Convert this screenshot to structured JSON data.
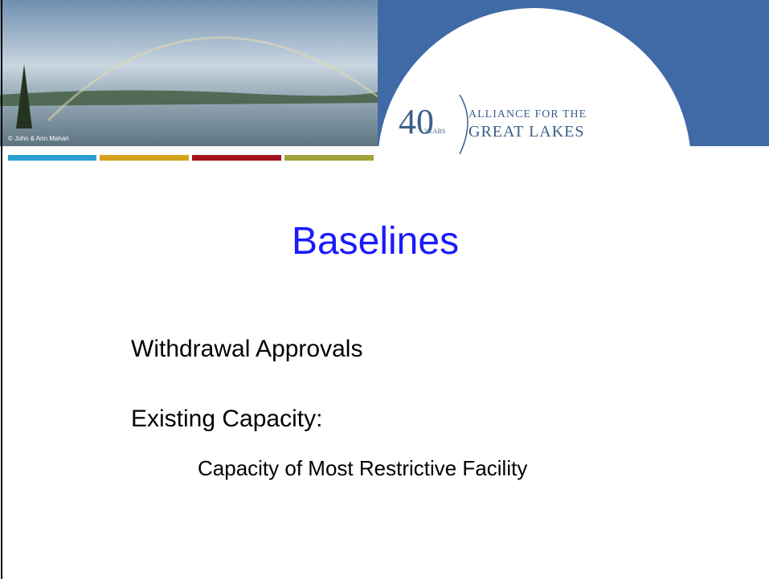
{
  "header": {
    "photo_credit": "© John & Ann Mahan",
    "logo_number": "40",
    "logo_years": "YEARS",
    "org_line1": "ALLIANCE FOR THE",
    "org_line2": "GREAT LAKES"
  },
  "slide": {
    "title": "Baselines",
    "bullets": [
      "Withdrawal Approvals",
      "Existing Capacity:"
    ],
    "sub_bullets": [
      "Capacity of Most Restrictive Facility"
    ]
  }
}
